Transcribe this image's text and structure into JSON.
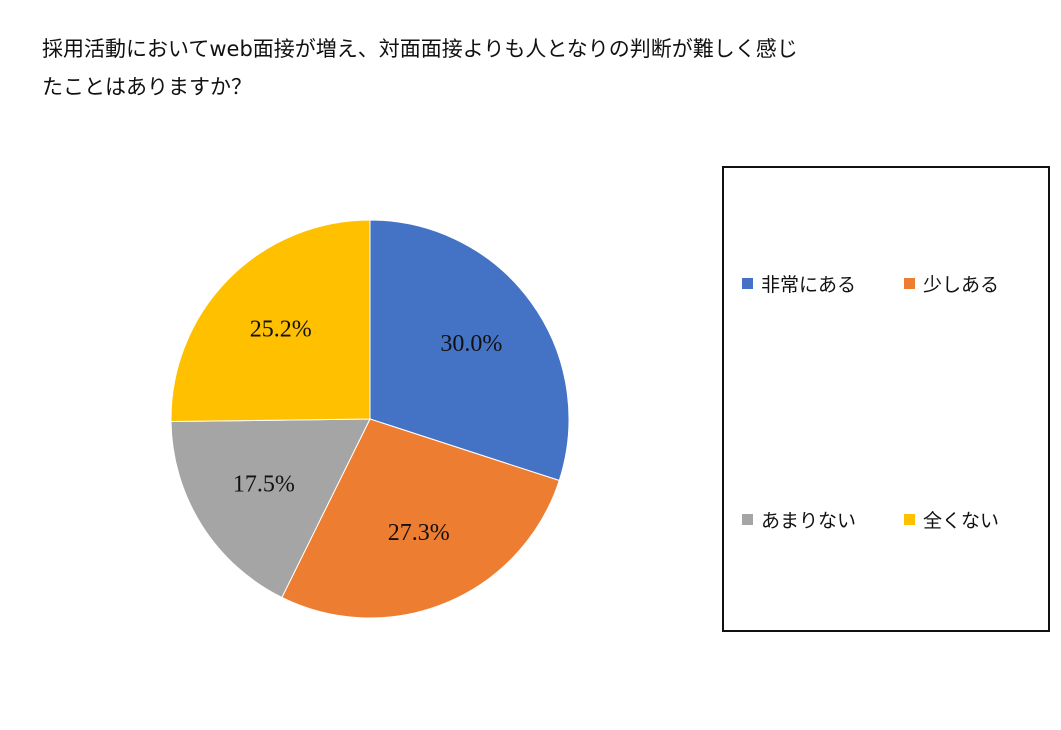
{
  "chart_data": {
    "type": "pie",
    "title_lines": [
      "採用活動においてweb面接が増え、対面面接よりも人となりの判断が難しく感じ",
      "たことはありますか？"
    ],
    "categories": [
      "非常にある",
      "少しある",
      "あまりない",
      "全くない"
    ],
    "values": [
      30.0,
      27.3,
      17.5,
      25.2
    ],
    "data_labels": [
      "30.0%",
      "27.3%",
      "17.5%",
      "25.2%"
    ],
    "colors": [
      "#4472C4",
      "#ED7D31",
      "#A5A5A5",
      "#FFC000"
    ],
    "start_angle": "12 o'clock",
    "direction": "clockwise",
    "legend_placement": "right"
  }
}
